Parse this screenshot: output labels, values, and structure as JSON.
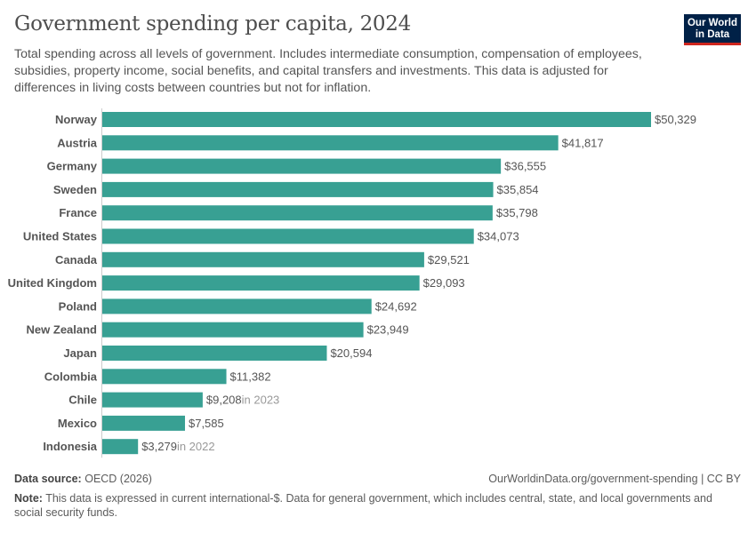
{
  "header": {
    "title": "Government spending per capita, 2024",
    "subtitle": "Total spending across all levels of government. Includes intermediate consumption, compensation of employees, subsidies, property income, social benefits, and capital transfers and investments. This data is adjusted for differences in living costs between countries but not for inflation.",
    "logo_line1": "Our World",
    "logo_line2": "in Data"
  },
  "chart_data": {
    "type": "bar",
    "orientation": "horizontal",
    "categories": [
      "Norway",
      "Austria",
      "Germany",
      "Sweden",
      "France",
      "United States",
      "Canada",
      "United Kingdom",
      "Poland",
      "New Zealand",
      "Japan",
      "Colombia",
      "Chile",
      "Mexico",
      "Indonesia"
    ],
    "values": [
      50329,
      41817,
      36555,
      35854,
      35798,
      34073,
      29521,
      29093,
      24692,
      23949,
      20594,
      11382,
      9208,
      7585,
      3279
    ],
    "labels": [
      "$50,329",
      "$41,817",
      "$36,555",
      "$35,854",
      "$35,798",
      "$34,073",
      "$29,521",
      "$29,093",
      "$24,692",
      "$23,949",
      "$20,594",
      "$11,382",
      "$9,208",
      "$7,585",
      "$3,279"
    ],
    "annotations": [
      "",
      "",
      "",
      "",
      "",
      "",
      "",
      "",
      "",
      "",
      "",
      "",
      "in 2023",
      "",
      "in 2022"
    ],
    "bar_color": "#38a093",
    "grid": false
  },
  "footer": {
    "source_label": "Data source:",
    "source": "OECD (2026)",
    "url": "OurWorldinData.org/government-spending | CC BY",
    "note_label": "Note:",
    "note": "This data is expressed in current international-$. Data for general government, which includes central, state, and local governments and social security funds."
  }
}
